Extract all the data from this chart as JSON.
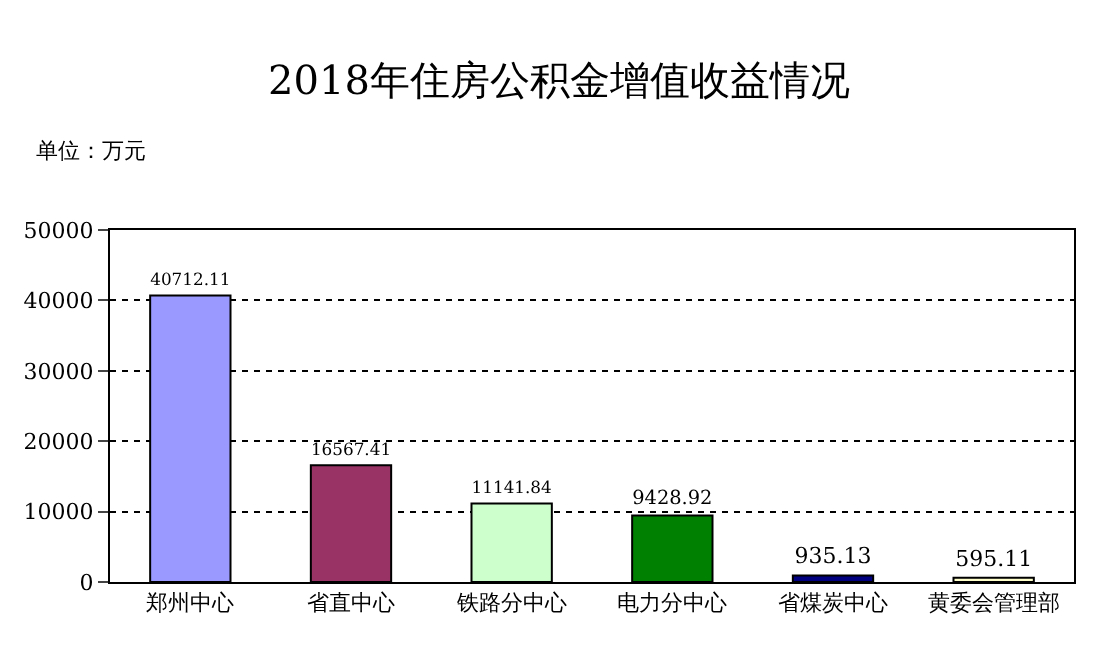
{
  "chart_data": {
    "type": "bar",
    "title": "2018年住房公积金增值收益情况",
    "annotations": [
      "单位：万元"
    ],
    "categories": [
      "郑州中心",
      "省直中心",
      "铁路分中心",
      "电力分中心",
      "省煤炭中心",
      "黄委会管理部"
    ],
    "values": [
      40712.11,
      16567.41,
      11141.84,
      9428.92,
      935.13,
      595.11
    ],
    "colors": [
      "#9999ff",
      "#993366",
      "#ccffcc",
      "#008000",
      "#000080",
      "#ffffcc"
    ],
    "value_labels": [
      "40712.11",
      "16567.41",
      "11141.84",
      "9428.92",
      "935.13",
      "595.11"
    ],
    "ylim": [
      0,
      50000
    ],
    "yticks": [
      0,
      10000,
      20000,
      30000,
      40000,
      50000
    ],
    "grid": "y"
  }
}
